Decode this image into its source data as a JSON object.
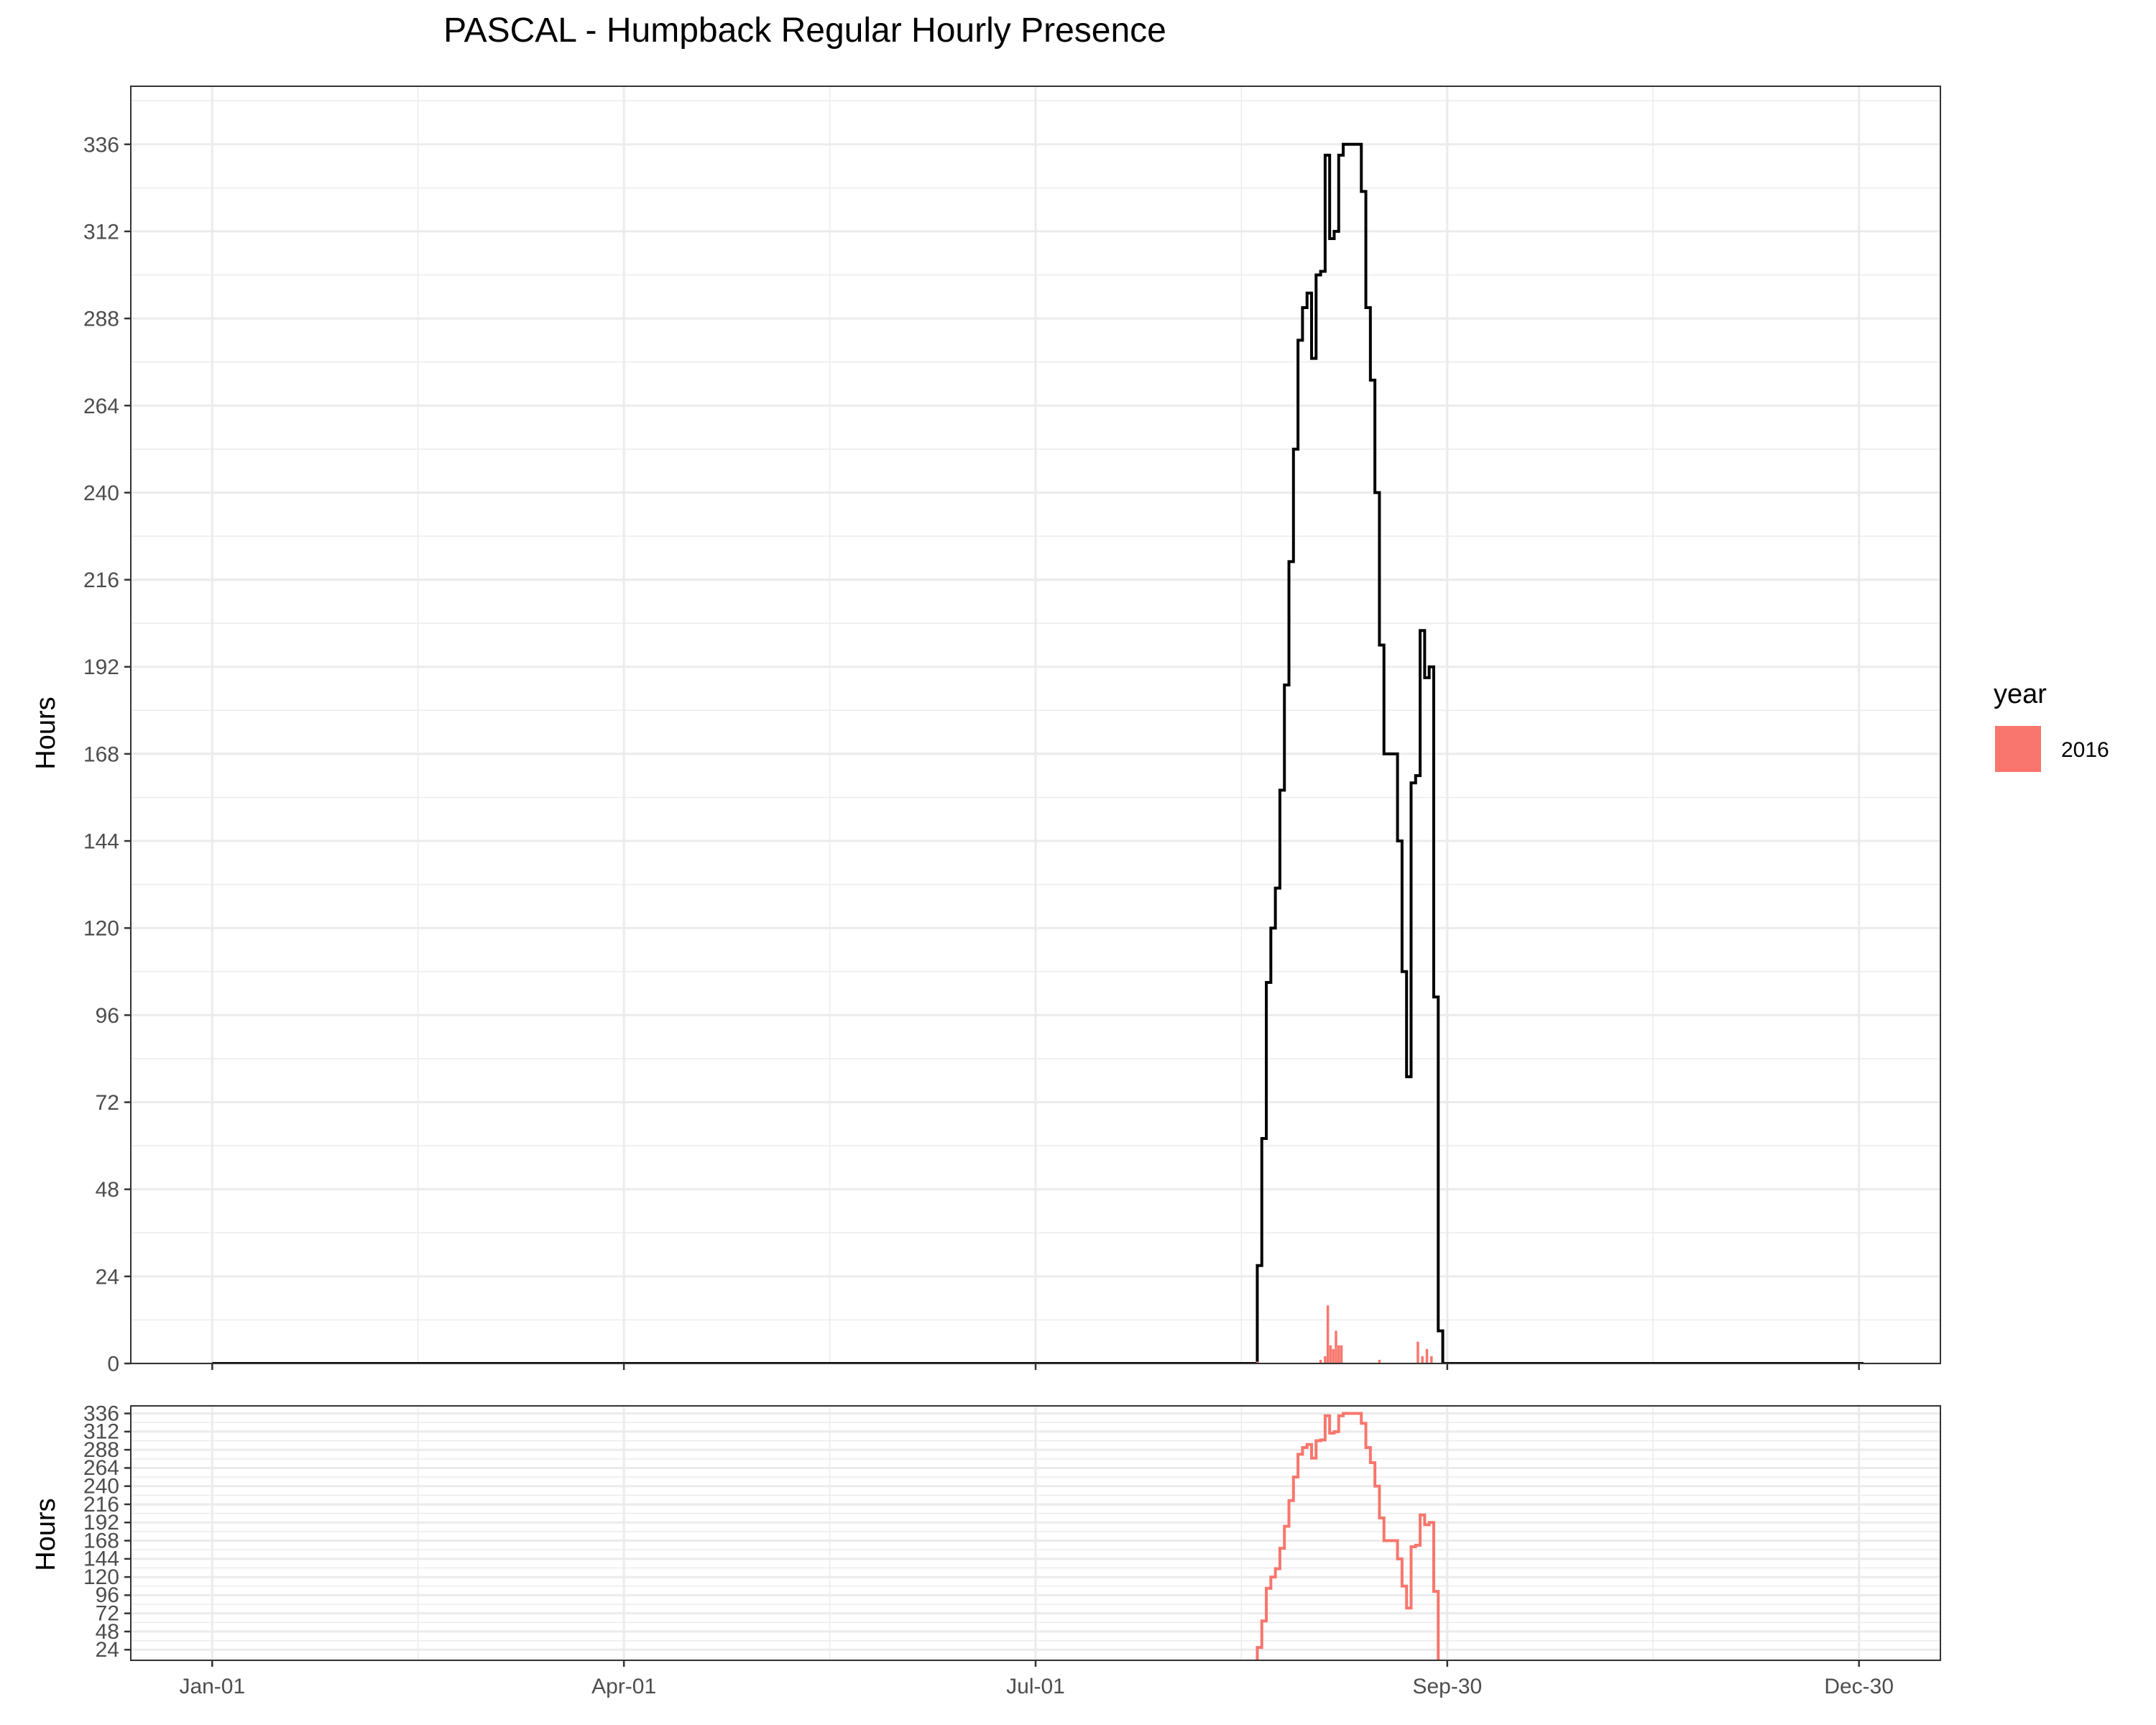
{
  "chart_data": [
    {
      "type": "line",
      "title": "PASCAL - Humpback Regular Hourly Presence",
      "xlabel": "",
      "ylabel": "Hours",
      "x_tick_labels": [
        "Jan-01",
        "Apr-01",
        "Jul-01",
        "Sep-30",
        "Dec-30"
      ],
      "x_tick_days": [
        0,
        91,
        182,
        273,
        364
      ],
      "xlim_days": [
        -18,
        382
      ],
      "ylim": [
        0,
        352
      ],
      "y_ticks": [
        0,
        24,
        48,
        72,
        96,
        120,
        144,
        168,
        192,
        216,
        240,
        264,
        288,
        312,
        336
      ],
      "grid": true,
      "legend": {
        "title": "year",
        "position": "right",
        "entries": [
          {
            "label": "2016",
            "color": "#F8766D"
          }
        ]
      },
      "series": [
        {
          "style": "step",
          "color": "#000000",
          "points": [
            [
              0,
              0
            ],
            [
              230,
              0
            ],
            [
              231,
              27
            ],
            [
              232,
              62
            ],
            [
              233,
              105
            ],
            [
              234,
              120
            ],
            [
              235,
              131
            ],
            [
              236,
              158
            ],
            [
              237,
              187
            ],
            [
              238,
              221
            ],
            [
              239,
              252
            ],
            [
              240,
              282
            ],
            [
              241,
              291
            ],
            [
              242,
              295
            ],
            [
              243,
              277
            ],
            [
              244,
              300
            ],
            [
              245,
              301
            ],
            [
              246,
              333
            ],
            [
              247,
              310
            ],
            [
              248,
              312
            ],
            [
              249,
              333
            ],
            [
              250,
              336
            ],
            [
              251,
              336
            ],
            [
              252,
              336
            ],
            [
              253,
              336
            ],
            [
              254,
              323
            ],
            [
              255,
              291
            ],
            [
              256,
              271
            ],
            [
              257,
              240
            ],
            [
              258,
              198
            ],
            [
              259,
              168
            ],
            [
              260,
              168
            ],
            [
              261,
              168
            ],
            [
              262,
              144
            ],
            [
              263,
              108
            ],
            [
              264,
              79
            ],
            [
              265,
              160
            ],
            [
              266,
              162
            ],
            [
              267,
              202
            ],
            [
              268,
              189
            ],
            [
              269,
              192
            ],
            [
              270,
              101
            ],
            [
              271,
              9
            ],
            [
              272,
              0
            ],
            [
              365,
              0
            ]
          ]
        },
        {
          "style": "bars",
          "name": "2016",
          "color": "#F8766D",
          "points": [
            [
              231,
              0.5
            ],
            [
              245,
              1
            ],
            [
              246,
              2
            ],
            [
              246.6,
              16
            ],
            [
              247.2,
              5
            ],
            [
              247.8,
              4
            ],
            [
              248.4,
              9
            ],
            [
              249,
              5
            ],
            [
              249.6,
              5
            ],
            [
              258,
              1
            ],
            [
              266.5,
              6
            ],
            [
              267.5,
              2
            ],
            [
              268.5,
              4
            ],
            [
              269.5,
              2
            ]
          ]
        }
      ]
    },
    {
      "type": "line",
      "title": "",
      "xlabel": "",
      "ylabel": "Hours",
      "x_tick_labels": [
        "Jan-01",
        "Apr-01",
        "Jul-01",
        "Sep-30",
        "Dec-30"
      ],
      "x_tick_days": [
        0,
        91,
        182,
        273,
        364
      ],
      "xlim_days": [
        -18,
        382
      ],
      "ylim": [
        10,
        346
      ],
      "y_ticks": [
        24,
        48,
        72,
        96,
        120,
        144,
        168,
        192,
        216,
        240,
        264,
        288,
        312,
        336
      ],
      "y_tick_labels": [
        "24",
        "48",
        "72",
        "96",
        "120",
        "144",
        "168",
        "192",
        "216",
        "240",
        "264",
        "288",
        "312",
        "336"
      ],
      "grid": true,
      "series": [
        {
          "name": "2016",
          "style": "step",
          "color": "#F8766D",
          "points": [
            [
              0,
              0
            ],
            [
              230,
              0
            ],
            [
              231,
              27
            ],
            [
              232,
              62
            ],
            [
              233,
              105
            ],
            [
              234,
              120
            ],
            [
              235,
              131
            ],
            [
              236,
              158
            ],
            [
              237,
              187
            ],
            [
              238,
              221
            ],
            [
              239,
              252
            ],
            [
              240,
              282
            ],
            [
              241,
              291
            ],
            [
              242,
              295
            ],
            [
              243,
              277
            ],
            [
              244,
              300
            ],
            [
              245,
              301
            ],
            [
              246,
              333
            ],
            [
              247,
              310
            ],
            [
              248,
              312
            ],
            [
              249,
              333
            ],
            [
              250,
              336
            ],
            [
              251,
              336
            ],
            [
              252,
              336
            ],
            [
              253,
              336
            ],
            [
              254,
              323
            ],
            [
              255,
              291
            ],
            [
              256,
              271
            ],
            [
              257,
              240
            ],
            [
              258,
              198
            ],
            [
              259,
              168
            ],
            [
              260,
              168
            ],
            [
              261,
              168
            ],
            [
              262,
              144
            ],
            [
              263,
              108
            ],
            [
              264,
              79
            ],
            [
              265,
              160
            ],
            [
              266,
              162
            ],
            [
              267,
              202
            ],
            [
              268,
              189
            ],
            [
              269,
              192
            ],
            [
              270,
              101
            ],
            [
              271,
              9
            ],
            [
              272,
              0
            ],
            [
              365,
              0
            ]
          ]
        }
      ]
    }
  ]
}
